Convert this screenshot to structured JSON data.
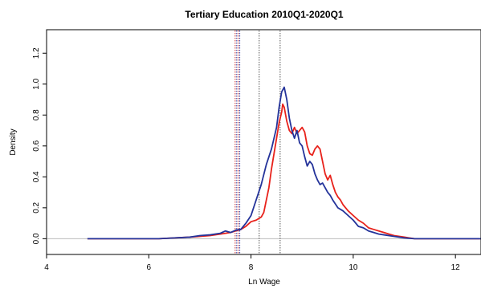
{
  "chart_data": {
    "type": "line",
    "title": "Tertiary Education 2010Q1-2020Q1",
    "xlabel": "Ln Wage",
    "ylabel": "Density",
    "xlim": [
      4,
      12.5
    ],
    "ylim": [
      -0.05,
      1.3
    ],
    "x_ticks": [
      4,
      6,
      8,
      10,
      12
    ],
    "y_ticks": [
      0.0,
      0.2,
      0.4,
      0.6,
      0.8,
      1.0,
      1.2
    ],
    "x_tick_labels": [
      "4",
      "6",
      "8",
      "10",
      "12"
    ],
    "y_tick_labels": [
      "0.0",
      "0.2",
      "0.4",
      "0.6",
      "0.8",
      "1.0",
      "1.2"
    ],
    "grid": false,
    "legend": "none",
    "baseline": {
      "y": 0,
      "color": "#bbbbbb"
    },
    "vertical_lines": [
      {
        "x": 7.69,
        "color": "#cc3333",
        "style": "dotted"
      },
      {
        "x": 7.72,
        "color": "#3344aa",
        "style": "dotted"
      },
      {
        "x": 7.75,
        "color": "#cc3333",
        "style": "dotted"
      },
      {
        "x": 7.78,
        "color": "#3344aa",
        "style": "dotted"
      },
      {
        "x": 8.16,
        "color": "#555555",
        "style": "dotted"
      },
      {
        "x": 8.57,
        "color": "#555555",
        "style": "dotted"
      }
    ],
    "series": [
      {
        "color": "#e8221b",
        "x": [
          4.8,
          6.2,
          6.5,
          6.8,
          7.0,
          7.2,
          7.4,
          7.6,
          7.8,
          7.9,
          8.0,
          8.1,
          8.2,
          8.25,
          8.3,
          8.35,
          8.4,
          8.45,
          8.5,
          8.55,
          8.6,
          8.62,
          8.65,
          8.7,
          8.75,
          8.8,
          8.85,
          8.9,
          8.95,
          9.0,
          9.05,
          9.1,
          9.15,
          9.2,
          9.25,
          9.3,
          9.35,
          9.4,
          9.45,
          9.5,
          9.55,
          9.6,
          9.65,
          9.7,
          9.75,
          9.8,
          9.9,
          10.0,
          10.1,
          10.2,
          10.3,
          10.4,
          10.5,
          10.6,
          10.7,
          10.8,
          11.0,
          11.2,
          12.5
        ],
        "y": [
          0.0,
          0.0,
          0.005,
          0.01,
          0.015,
          0.02,
          0.03,
          0.04,
          0.06,
          0.08,
          0.11,
          0.12,
          0.14,
          0.17,
          0.25,
          0.33,
          0.45,
          0.55,
          0.65,
          0.75,
          0.82,
          0.87,
          0.85,
          0.76,
          0.7,
          0.68,
          0.72,
          0.68,
          0.7,
          0.72,
          0.69,
          0.6,
          0.55,
          0.54,
          0.58,
          0.6,
          0.58,
          0.5,
          0.42,
          0.38,
          0.41,
          0.35,
          0.3,
          0.27,
          0.25,
          0.22,
          0.18,
          0.15,
          0.12,
          0.1,
          0.07,
          0.06,
          0.05,
          0.04,
          0.03,
          0.02,
          0.01,
          0.0,
          0.0
        ]
      },
      {
        "color": "#24339a",
        "x": [
          4.8,
          6.2,
          6.5,
          6.8,
          7.0,
          7.2,
          7.4,
          7.5,
          7.6,
          7.7,
          7.8,
          7.9,
          8.0,
          8.1,
          8.2,
          8.3,
          8.4,
          8.5,
          8.55,
          8.6,
          8.65,
          8.7,
          8.75,
          8.8,
          8.85,
          8.9,
          8.95,
          9.0,
          9.05,
          9.1,
          9.15,
          9.2,
          9.25,
          9.3,
          9.35,
          9.4,
          9.45,
          9.5,
          9.55,
          9.6,
          9.7,
          9.8,
          9.9,
          10.0,
          10.1,
          10.2,
          10.3,
          10.4,
          10.5,
          10.6,
          10.8,
          11.0,
          11.2,
          12.5
        ],
        "y": [
          0.0,
          0.0,
          0.005,
          0.01,
          0.02,
          0.025,
          0.035,
          0.05,
          0.04,
          0.055,
          0.06,
          0.1,
          0.15,
          0.25,
          0.35,
          0.48,
          0.58,
          0.72,
          0.85,
          0.95,
          0.98,
          0.9,
          0.78,
          0.7,
          0.65,
          0.7,
          0.62,
          0.6,
          0.53,
          0.47,
          0.5,
          0.48,
          0.42,
          0.38,
          0.35,
          0.36,
          0.33,
          0.3,
          0.28,
          0.25,
          0.2,
          0.18,
          0.15,
          0.12,
          0.08,
          0.07,
          0.05,
          0.04,
          0.03,
          0.025,
          0.015,
          0.005,
          0.0,
          0.0
        ]
      }
    ]
  }
}
